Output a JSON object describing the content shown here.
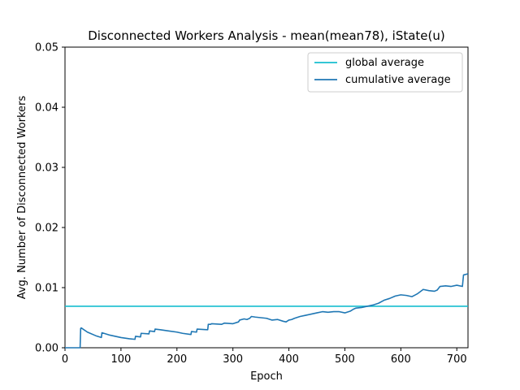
{
  "chart_data": {
    "type": "line",
    "title": "Disconnected Workers Analysis - mean(mean78), iState(u)",
    "xlabel": "Epoch",
    "ylabel": "Avg. Number of Disconnected Workers",
    "xlim": [
      0,
      720
    ],
    "ylim": [
      0,
      0.05
    ],
    "xticks": [
      0,
      100,
      200,
      300,
      400,
      500,
      600,
      700
    ],
    "xtick_labels": [
      "0",
      "100",
      "200",
      "300",
      "400",
      "500",
      "600",
      "700"
    ],
    "yticks": [
      0,
      0.01,
      0.02,
      0.03,
      0.04,
      0.05
    ],
    "ytick_labels": [
      "0.00",
      "0.01",
      "0.02",
      "0.03",
      "0.04",
      "0.05"
    ],
    "grid": false,
    "legend": "top-right",
    "series": [
      {
        "name": "global average",
        "color": "#17becf",
        "x": [
          0,
          720
        ],
        "y": [
          0.0069,
          0.0069
        ]
      },
      {
        "name": "cumulative average",
        "color": "#1f77b4",
        "x": [
          0,
          27,
          28,
          29,
          40,
          55,
          65,
          66,
          80,
          100,
          115,
          125,
          126,
          135,
          136,
          150,
          151,
          160,
          161,
          170,
          185,
          200,
          210,
          225,
          226,
          235,
          236,
          255,
          256,
          260,
          262,
          280,
          285,
          300,
          310,
          312,
          320,
          325,
          330,
          333,
          340,
          350,
          360,
          370,
          380,
          390,
          395,
          400,
          405,
          410,
          420,
          430,
          440,
          450,
          460,
          470,
          480,
          490,
          500,
          510,
          515,
          520,
          530,
          540,
          550,
          560,
          570,
          580,
          590,
          600,
          610,
          620,
          630,
          640,
          650,
          660,
          665,
          670,
          680,
          690,
          700,
          710,
          712,
          720
        ],
        "y": [
          0.0,
          0.0,
          0.0032,
          0.0033,
          0.0026,
          0.002,
          0.0017,
          0.0025,
          0.0021,
          0.0017,
          0.0015,
          0.0014,
          0.0019,
          0.0018,
          0.0024,
          0.0023,
          0.0028,
          0.0027,
          0.0031,
          0.003,
          0.0028,
          0.0026,
          0.0024,
          0.0022,
          0.0027,
          0.0026,
          0.0031,
          0.003,
          0.0039,
          0.0039,
          0.004,
          0.0039,
          0.0041,
          0.004,
          0.0043,
          0.0046,
          0.0048,
          0.0047,
          0.0049,
          0.0052,
          0.0051,
          0.005,
          0.0049,
          0.0046,
          0.0047,
          0.0044,
          0.0043,
          0.0046,
          0.0047,
          0.0049,
          0.0052,
          0.0054,
          0.0056,
          0.0058,
          0.006,
          0.0059,
          0.006,
          0.006,
          0.0058,
          0.0061,
          0.0064,
          0.0066,
          0.0067,
          0.0069,
          0.0071,
          0.0074,
          0.0079,
          0.0082,
          0.0086,
          0.0088,
          0.0087,
          0.0085,
          0.009,
          0.0097,
          0.0095,
          0.0094,
          0.0096,
          0.0102,
          0.0103,
          0.0102,
          0.0104,
          0.0102,
          0.0121,
          0.0123
        ]
      }
    ]
  }
}
